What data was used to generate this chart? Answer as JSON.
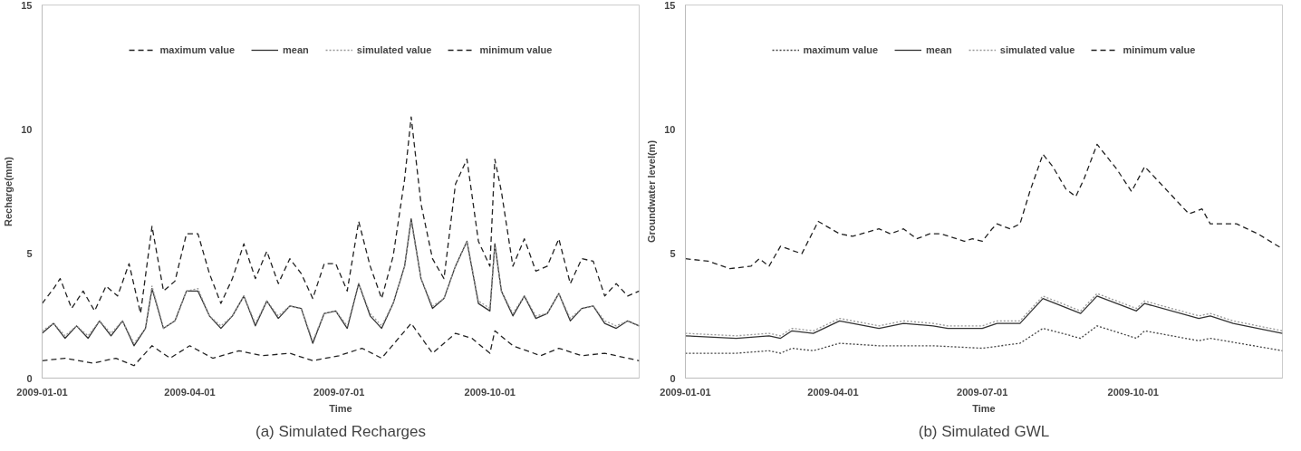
{
  "chart_data": [
    {
      "type": "line",
      "title": "(a) Simulated Recharges",
      "xlabel": "Time",
      "ylabel": "Recharge(mm)",
      "xlim": [
        "2009-01-01",
        "2009-12-31"
      ],
      "xticks": [
        "2009-01-01",
        "2009-04-01",
        "2009-07-01",
        "2009-10-01"
      ],
      "ylim": [
        0,
        15
      ],
      "yticks": [
        0,
        5,
        10,
        15
      ],
      "grid": false,
      "legend": "top",
      "series": [
        {
          "name": "maximum value",
          "color": "#222222",
          "line_style": "dashed",
          "x": [
            "2009-01-01",
            "2009-01-08",
            "2009-01-12",
            "2009-01-19",
            "2009-01-26",
            "2009-02-02",
            "2009-02-09",
            "2009-02-16",
            "2009-02-23",
            "2009-03-02",
            "2009-03-09",
            "2009-03-16",
            "2009-03-23",
            "2009-03-30",
            "2009-04-06",
            "2009-04-13",
            "2009-04-20",
            "2009-04-27",
            "2009-05-04",
            "2009-05-11",
            "2009-05-18",
            "2009-05-25",
            "2009-06-01",
            "2009-06-08",
            "2009-06-15",
            "2009-06-22",
            "2009-06-29",
            "2009-07-06",
            "2009-07-13",
            "2009-07-20",
            "2009-07-27",
            "2009-08-03",
            "2009-08-10",
            "2009-08-14",
            "2009-08-20",
            "2009-08-27",
            "2009-09-03",
            "2009-09-10",
            "2009-09-17",
            "2009-09-24",
            "2009-10-01",
            "2009-10-04",
            "2009-10-08",
            "2009-10-15",
            "2009-10-22",
            "2009-10-29",
            "2009-11-05",
            "2009-11-12",
            "2009-11-19",
            "2009-11-26",
            "2009-12-03",
            "2009-12-10",
            "2009-12-17",
            "2009-12-24",
            "2009-12-31"
          ],
          "values": [
            3.0,
            3.6,
            4.0,
            2.8,
            3.5,
            2.7,
            3.7,
            3.3,
            4.6,
            2.6,
            6.1,
            3.5,
            3.9,
            5.8,
            5.8,
            4.2,
            3.0,
            4.0,
            5.4,
            4.0,
            5.1,
            3.8,
            4.8,
            4.2,
            3.2,
            4.6,
            4.6,
            3.5,
            6.3,
            4.5,
            3.2,
            4.9,
            8.0,
            10.5,
            7.0,
            4.8,
            4.0,
            7.8,
            8.8,
            5.5,
            4.5,
            8.8,
            7.5,
            4.5,
            5.6,
            4.3,
            4.5,
            5.6,
            3.8,
            4.8,
            4.7,
            3.3,
            3.8,
            3.3,
            3.5
          ]
        },
        {
          "name": "mean",
          "color": "#333333",
          "line_style": "solid",
          "x": [
            "2009-01-01",
            "2009-01-08",
            "2009-01-15",
            "2009-01-22",
            "2009-01-29",
            "2009-02-05",
            "2009-02-12",
            "2009-02-19",
            "2009-02-26",
            "2009-03-05",
            "2009-03-09",
            "2009-03-16",
            "2009-03-23",
            "2009-03-30",
            "2009-04-06",
            "2009-04-13",
            "2009-04-20",
            "2009-04-27",
            "2009-05-04",
            "2009-05-11",
            "2009-05-18",
            "2009-05-25",
            "2009-06-01",
            "2009-06-08",
            "2009-06-15",
            "2009-06-22",
            "2009-06-29",
            "2009-07-06",
            "2009-07-13",
            "2009-07-20",
            "2009-07-27",
            "2009-08-03",
            "2009-08-10",
            "2009-08-14",
            "2009-08-20",
            "2009-08-27",
            "2009-09-03",
            "2009-09-10",
            "2009-09-17",
            "2009-09-24",
            "2009-10-01",
            "2009-10-04",
            "2009-10-08",
            "2009-10-15",
            "2009-10-22",
            "2009-10-29",
            "2009-11-05",
            "2009-11-12",
            "2009-11-19",
            "2009-11-26",
            "2009-12-03",
            "2009-12-10",
            "2009-12-17",
            "2009-12-24",
            "2009-12-31"
          ],
          "values": [
            1.8,
            2.2,
            1.6,
            2.1,
            1.6,
            2.3,
            1.7,
            2.3,
            1.3,
            2.0,
            3.6,
            2.0,
            2.3,
            3.5,
            3.5,
            2.5,
            2.0,
            2.5,
            3.3,
            2.1,
            3.1,
            2.4,
            2.9,
            2.8,
            1.4,
            2.6,
            2.7,
            2.0,
            3.8,
            2.5,
            2.0,
            3.0,
            4.5,
            6.4,
            4.0,
            2.8,
            3.2,
            4.5,
            5.5,
            3.0,
            2.7,
            5.4,
            3.5,
            2.5,
            3.3,
            2.4,
            2.6,
            3.4,
            2.3,
            2.8,
            2.9,
            2.2,
            2.0,
            2.3,
            2.1
          ]
        },
        {
          "name": "simulated value",
          "color": "#999999",
          "line_style": "dotted",
          "x": [
            "2009-01-01",
            "2009-01-08",
            "2009-01-15",
            "2009-01-22",
            "2009-01-29",
            "2009-02-05",
            "2009-02-12",
            "2009-02-19",
            "2009-02-26",
            "2009-03-05",
            "2009-03-09",
            "2009-03-16",
            "2009-03-23",
            "2009-03-30",
            "2009-04-06",
            "2009-04-13",
            "2009-04-20",
            "2009-04-27",
            "2009-05-04",
            "2009-05-11",
            "2009-05-18",
            "2009-05-25",
            "2009-06-01",
            "2009-06-08",
            "2009-06-15",
            "2009-06-22",
            "2009-06-29",
            "2009-07-06",
            "2009-07-13",
            "2009-07-20",
            "2009-07-27",
            "2009-08-03",
            "2009-08-10",
            "2009-08-14",
            "2009-08-20",
            "2009-08-27",
            "2009-09-03",
            "2009-09-10",
            "2009-09-17",
            "2009-09-24",
            "2009-10-01",
            "2009-10-04",
            "2009-10-08",
            "2009-10-15",
            "2009-10-22",
            "2009-10-29",
            "2009-11-05",
            "2009-11-12",
            "2009-11-19",
            "2009-11-26",
            "2009-12-03",
            "2009-12-10",
            "2009-12-17",
            "2009-12-24",
            "2009-12-31"
          ],
          "values": [
            1.9,
            2.2,
            1.7,
            2.1,
            1.7,
            2.3,
            1.8,
            2.3,
            1.4,
            2.0,
            3.7,
            2.0,
            2.3,
            3.5,
            3.6,
            2.5,
            2.1,
            2.5,
            3.3,
            2.2,
            3.1,
            2.5,
            2.9,
            2.8,
            1.5,
            2.6,
            2.7,
            2.1,
            3.8,
            2.6,
            2.1,
            3.0,
            4.5,
            6.3,
            4.0,
            2.9,
            3.2,
            4.5,
            5.5,
            3.1,
            2.8,
            5.3,
            3.5,
            2.6,
            3.3,
            2.5,
            2.6,
            3.4,
            2.4,
            2.8,
            2.9,
            2.3,
            2.1,
            2.3,
            2.1
          ]
        },
        {
          "name": "minimum value",
          "color": "#222222",
          "line_style": "dashed",
          "x": [
            "2009-01-01",
            "2009-01-15",
            "2009-02-01",
            "2009-02-15",
            "2009-02-26",
            "2009-03-09",
            "2009-03-20",
            "2009-04-01",
            "2009-04-15",
            "2009-05-01",
            "2009-05-15",
            "2009-06-01",
            "2009-06-15",
            "2009-07-01",
            "2009-07-15",
            "2009-07-27",
            "2009-08-14",
            "2009-08-27",
            "2009-09-10",
            "2009-09-20",
            "2009-10-01",
            "2009-10-04",
            "2009-10-15",
            "2009-11-01",
            "2009-11-12",
            "2009-11-26",
            "2009-12-10",
            "2009-12-31"
          ],
          "values": [
            0.7,
            0.8,
            0.6,
            0.8,
            0.5,
            1.3,
            0.8,
            1.3,
            0.8,
            1.1,
            0.9,
            1.0,
            0.7,
            0.9,
            1.2,
            0.8,
            2.2,
            1.0,
            1.8,
            1.6,
            1.0,
            1.9,
            1.3,
            0.9,
            1.2,
            0.9,
            1.0,
            0.7
          ]
        }
      ]
    },
    {
      "type": "line",
      "title": "(b) Simulated GWL",
      "xlabel": "Time",
      "ylabel": "Groundwater level(m)",
      "xlim": [
        "2009-01-01",
        "2009-12-31"
      ],
      "xticks": [
        "2009-01-01",
        "2009-04-01",
        "2009-07-01",
        "2009-10-01"
      ],
      "ylim": [
        0,
        15
      ],
      "yticks": [
        0,
        5,
        10,
        15
      ],
      "grid": false,
      "legend": "top",
      "series": [
        {
          "name": "maximum value",
          "color": "#444444",
          "line_style": "dotted",
          "x": [
            "2009-01-01",
            "2009-02-01",
            "2009-02-21",
            "2009-02-28",
            "2009-03-07",
            "2009-03-20",
            "2009-04-05",
            "2009-04-29",
            "2009-05-14",
            "2009-06-01",
            "2009-07-01",
            "2009-07-24",
            "2009-08-07",
            "2009-08-30",
            "2009-09-09",
            "2009-10-03",
            "2009-10-08",
            "2009-11-10",
            "2009-11-17",
            "2009-12-31"
          ],
          "values": [
            1.0,
            1.0,
            1.1,
            1.0,
            1.2,
            1.1,
            1.4,
            1.3,
            1.3,
            1.3,
            1.2,
            1.4,
            2.0,
            1.6,
            2.1,
            1.6,
            1.9,
            1.5,
            1.6,
            1.1
          ]
        },
        {
          "name": "mean",
          "color": "#333333",
          "line_style": "solid",
          "x": [
            "2009-01-01",
            "2009-02-01",
            "2009-02-21",
            "2009-02-28",
            "2009-03-07",
            "2009-03-20",
            "2009-04-05",
            "2009-04-29",
            "2009-05-14",
            "2009-06-01",
            "2009-06-10",
            "2009-07-01",
            "2009-07-10",
            "2009-07-24",
            "2009-08-07",
            "2009-08-30",
            "2009-09-09",
            "2009-10-03",
            "2009-10-08",
            "2009-11-10",
            "2009-11-17",
            "2009-12-01",
            "2009-12-31"
          ],
          "values": [
            1.7,
            1.6,
            1.7,
            1.6,
            1.9,
            1.8,
            2.3,
            2.0,
            2.2,
            2.1,
            2.0,
            2.0,
            2.2,
            2.2,
            3.2,
            2.6,
            3.3,
            2.7,
            3.0,
            2.4,
            2.5,
            2.2,
            1.8
          ]
        },
        {
          "name": "simulated value",
          "color": "#999999",
          "line_style": "dotted",
          "x": [
            "2009-01-01",
            "2009-02-01",
            "2009-02-21",
            "2009-02-28",
            "2009-03-07",
            "2009-03-20",
            "2009-04-05",
            "2009-04-29",
            "2009-05-14",
            "2009-06-01",
            "2009-06-10",
            "2009-07-01",
            "2009-07-10",
            "2009-07-24",
            "2009-08-07",
            "2009-08-30",
            "2009-09-09",
            "2009-10-03",
            "2009-10-08",
            "2009-11-10",
            "2009-11-17",
            "2009-12-01",
            "2009-12-31"
          ],
          "values": [
            1.8,
            1.7,
            1.8,
            1.7,
            2.0,
            1.9,
            2.4,
            2.1,
            2.3,
            2.2,
            2.1,
            2.1,
            2.3,
            2.3,
            3.3,
            2.7,
            3.4,
            2.8,
            3.1,
            2.5,
            2.6,
            2.3,
            1.9
          ]
        },
        {
          "name": "minimum value",
          "color": "#222222",
          "line_style": "dashed",
          "x": [
            "2009-01-01",
            "2009-01-15",
            "2009-01-28",
            "2009-02-10",
            "2009-02-15",
            "2009-02-21",
            "2009-02-28",
            "2009-03-13",
            "2009-03-23",
            "2009-04-05",
            "2009-04-13",
            "2009-04-29",
            "2009-05-06",
            "2009-05-14",
            "2009-05-22",
            "2009-05-30",
            "2009-06-06",
            "2009-06-20",
            "2009-06-25",
            "2009-07-01",
            "2009-07-07",
            "2009-07-10",
            "2009-07-18",
            "2009-07-24",
            "2009-07-30",
            "2009-08-07",
            "2009-08-13",
            "2009-08-21",
            "2009-08-27",
            "2009-09-01",
            "2009-09-09",
            "2009-09-21",
            "2009-09-30",
            "2009-10-08",
            "2009-10-18",
            "2009-11-04",
            "2009-11-12",
            "2009-11-17",
            "2009-12-03",
            "2009-12-16",
            "2009-12-31"
          ],
          "values": [
            4.8,
            4.7,
            4.4,
            4.5,
            4.8,
            4.5,
            5.3,
            5.0,
            6.3,
            5.8,
            5.7,
            6.0,
            5.8,
            6.0,
            5.6,
            5.8,
            5.8,
            5.5,
            5.6,
            5.5,
            6.0,
            6.2,
            6.0,
            6.2,
            7.5,
            9.0,
            8.5,
            7.6,
            7.3,
            8.0,
            9.4,
            8.4,
            7.5,
            8.5,
            7.8,
            6.6,
            6.8,
            6.2,
            6.2,
            5.8,
            5.2
          ]
        }
      ]
    }
  ]
}
